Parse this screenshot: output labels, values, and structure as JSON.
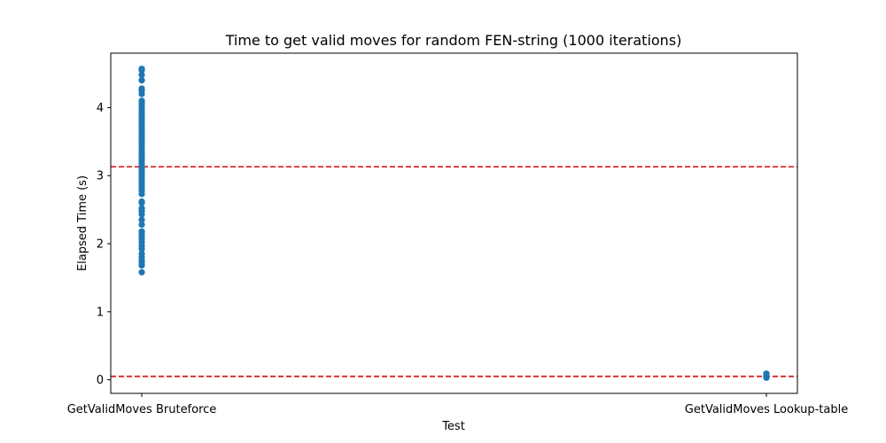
{
  "chart_data": {
    "type": "scatter",
    "title": "Time to get valid moves for random FEN-string (1000 iterations)",
    "xlabel": "Test",
    "ylabel": "Elapsed Time (s)",
    "categories": [
      "GetValidMoves Bruteforce",
      "GetValidMoves Lookup-table"
    ],
    "ylim": [
      -0.2,
      4.8
    ],
    "yticks": [
      0,
      1,
      2,
      3,
      4
    ],
    "grid": false,
    "point_color": "#1f77b4",
    "reference_line_color": "#d62728",
    "series": [
      {
        "category": "GetValidMoves Bruteforce",
        "values": [
          1.58,
          1.68,
          1.72,
          1.75,
          1.8,
          1.85,
          1.92,
          1.97,
          2.02,
          2.06,
          2.1,
          2.14,
          2.18,
          2.28,
          2.35,
          2.43,
          2.48,
          2.52,
          2.6,
          2.62,
          2.73,
          2.78,
          2.82,
          2.86,
          2.9,
          2.94,
          2.98,
          3.02,
          3.06,
          3.1,
          3.14,
          3.18,
          3.22,
          3.26,
          3.3,
          3.34,
          3.38,
          3.42,
          3.46,
          3.5,
          3.54,
          3.58,
          3.62,
          3.66,
          3.7,
          3.74,
          3.78,
          3.82,
          3.86,
          3.9,
          3.94,
          3.98,
          4.02,
          4.06,
          4.1,
          4.2,
          4.25,
          4.28,
          4.4,
          4.48,
          4.55,
          4.57
        ]
      },
      {
        "category": "GetValidMoves Lookup-table",
        "values": [
          0.03,
          0.04,
          0.05,
          0.06,
          0.07,
          0.08,
          0.09
        ]
      }
    ],
    "reference_lines": [
      3.13,
      0.05
    ]
  }
}
